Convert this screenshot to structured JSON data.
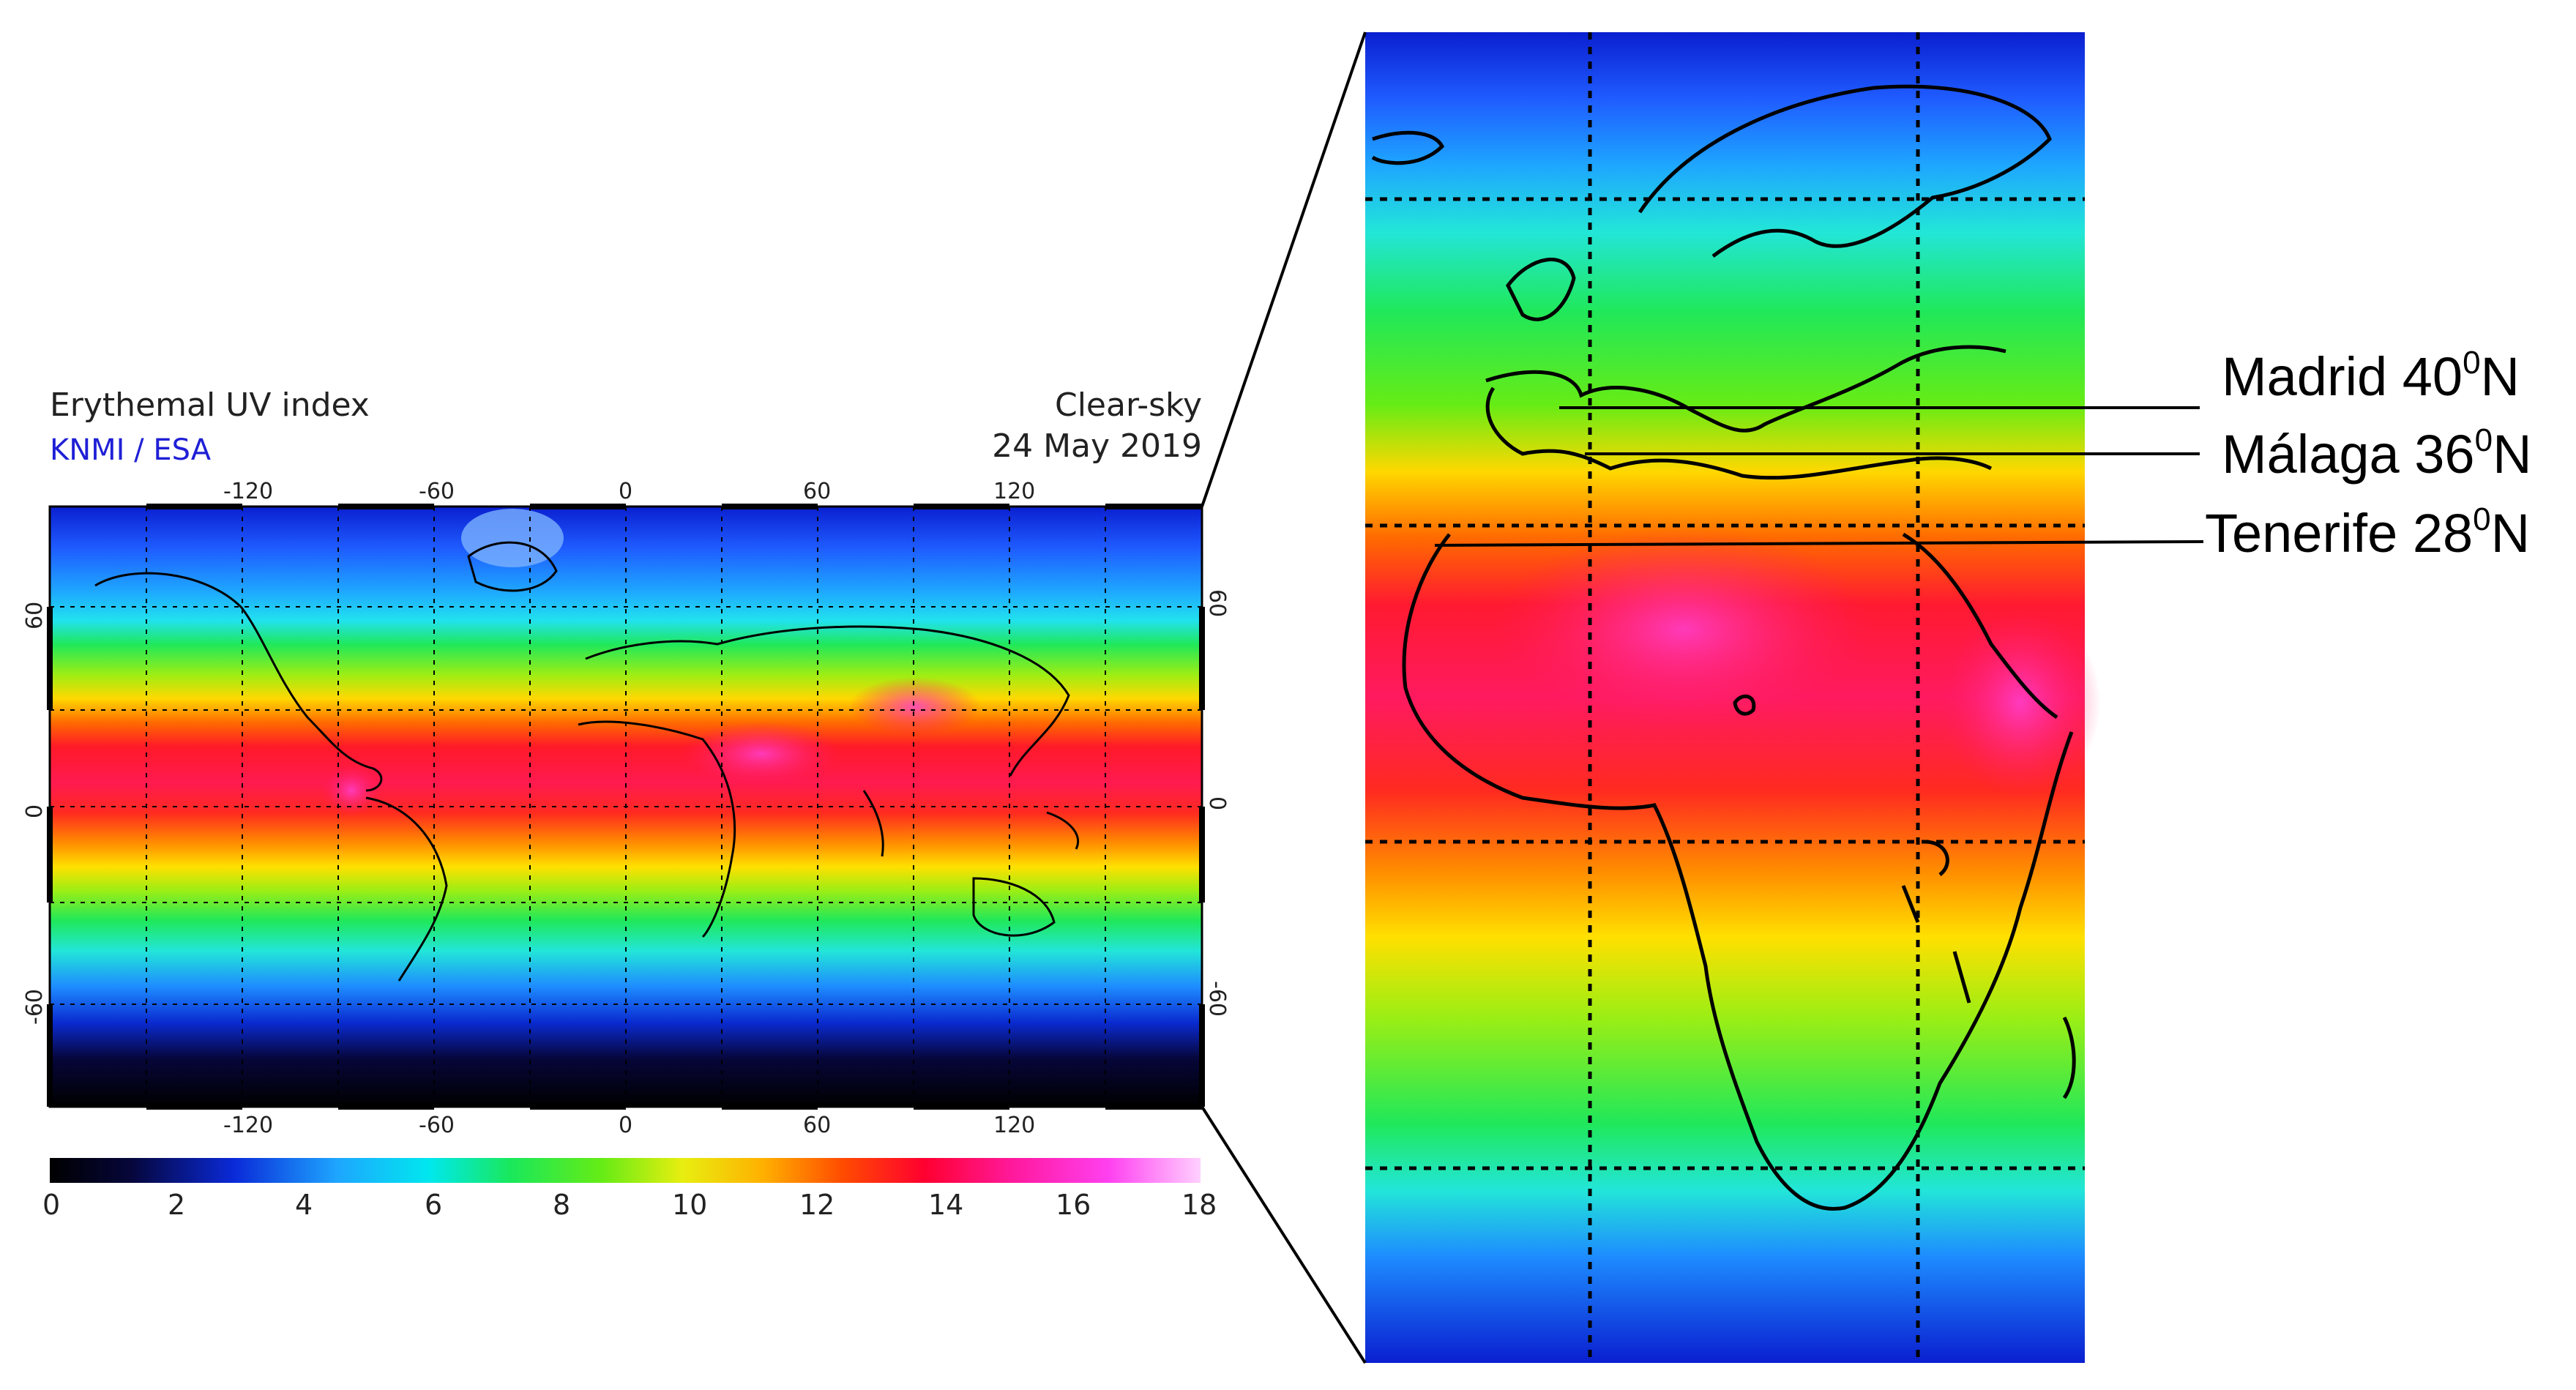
{
  "global_map": {
    "title": "Erythemal UV index",
    "credit": "KNMI / ESA",
    "condition": "Clear-sky",
    "date": "24 May 2019",
    "lon_ticks": [
      "-120",
      "-60",
      "0",
      "60",
      "120"
    ],
    "lat_ticks": [
      "60",
      "0",
      "-60"
    ]
  },
  "colorbar": {
    "ticks": [
      "0",
      "2",
      "4",
      "6",
      "8",
      "10",
      "12",
      "14",
      "16",
      "18"
    ],
    "colors": [
      "#000000",
      "#06063a",
      "#0a2ad8",
      "#1ea6ff",
      "#00e8ee",
      "#19e85c",
      "#66ec15",
      "#e8ee10",
      "#ffb000",
      "#ff4a00",
      "#ff0030",
      "#ff1aa0",
      "#ff40f0",
      "#ffd0ff"
    ]
  },
  "zoom_map": {
    "cities": [
      {
        "name": "Madrid 40",
        "sup": "0",
        "unit": "N"
      },
      {
        "name": "Málaga 36",
        "sup": "0",
        "unit": "N"
      },
      {
        "name": "Tenerife 28",
        "sup": "0",
        "unit": "N"
      }
    ]
  }
}
